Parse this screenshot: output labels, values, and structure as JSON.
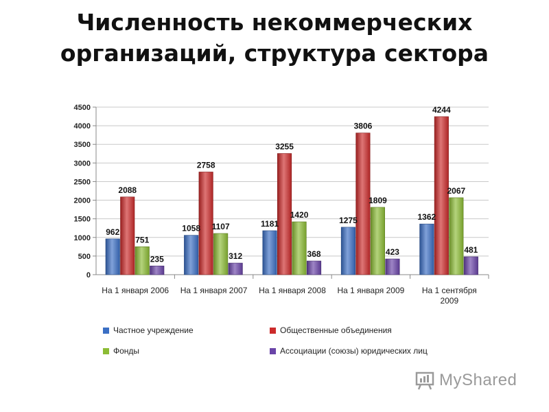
{
  "title_lines": [
    "Численность некоммерческих",
    "организаций, структура сектора"
  ],
  "chart_data": {
    "type": "bar",
    "categories": [
      [
        "На 1 января 2006"
      ],
      [
        "На 1 января 2007"
      ],
      [
        "На 1 января 2008"
      ],
      [
        "На 1 января 2009"
      ],
      [
        "На 1 сентября",
        "2009"
      ]
    ],
    "series": [
      {
        "name": "Частное учреждение",
        "color": "#3b6fc4",
        "values": [
          962,
          1058,
          1181,
          1275,
          1362
        ]
      },
      {
        "name": "Общественные объединения",
        "color": "#cc2b2b",
        "values": [
          2088,
          2758,
          3255,
          3806,
          4244
        ]
      },
      {
        "name": "Фонды",
        "color": "#8cbc35",
        "values": [
          751,
          1107,
          1420,
          1809,
          2067
        ]
      },
      {
        "name": "Ассоциации (союзы) юридических лиц",
        "color": "#6a44a8",
        "values": [
          235,
          312,
          368,
          423,
          481
        ]
      }
    ],
    "ylim": [
      0,
      4500
    ],
    "yticks": [
      0,
      500,
      1000,
      1500,
      2000,
      2500,
      3000,
      3500,
      4000,
      4500
    ],
    "grid": true,
    "legend_position": "bottom"
  },
  "watermark": {
    "text": "MyShared"
  }
}
